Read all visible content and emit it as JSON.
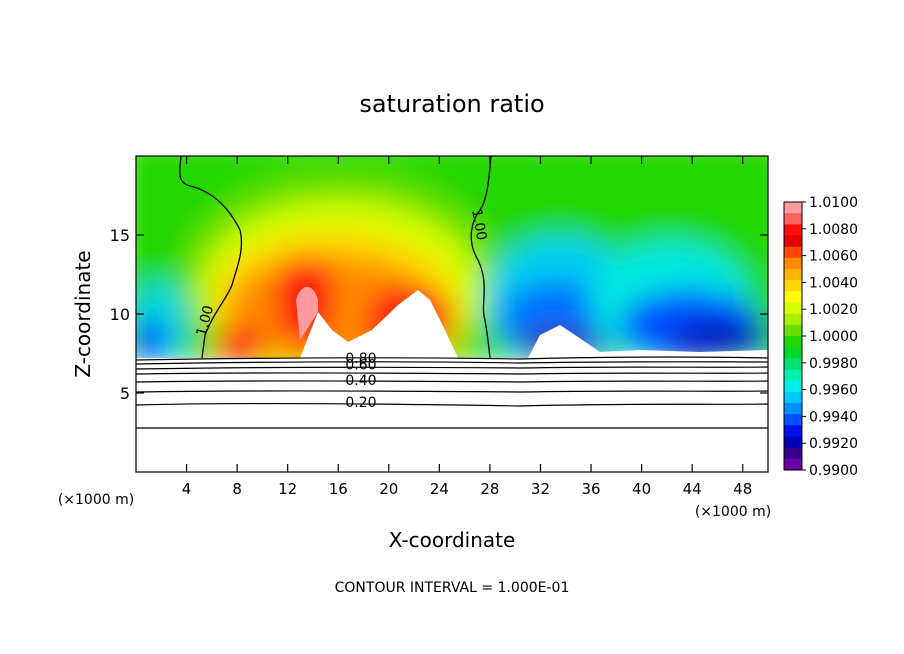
{
  "chart_data": {
    "type": "heatmap",
    "title": "saturation ratio",
    "xlabel": "X-coordinate",
    "ylabel": "Z-coordinate",
    "x_unit_left": "(×1000 m)",
    "x_unit_right": "(×1000 m)",
    "xlim": [
      0,
      50
    ],
    "ylim": [
      0,
      20
    ],
    "xticks": [
      4,
      8,
      12,
      16,
      20,
      24,
      28,
      32,
      36,
      40,
      44,
      48
    ],
    "yticks": [
      5,
      10,
      15
    ],
    "footer": "CONTOUR INTERVAL = 1.000E-01",
    "colorbar": {
      "labels": [
        "1.0100",
        "1.0080",
        "1.0060",
        "1.0040",
        "1.0020",
        "1.0000",
        "0.9980",
        "0.9960",
        "0.9940",
        "0.9920",
        "0.9900"
      ],
      "colors": [
        "#ff9aa0",
        "#ff6060",
        "#ff1010",
        "#e60000",
        "#ff4800",
        "#ff8c00",
        "#ffb400",
        "#ffd800",
        "#ffff00",
        "#d8ff00",
        "#a8f000",
        "#66e000",
        "#22d800",
        "#00d82a",
        "#00e070",
        "#00f0b0",
        "#00f0e8",
        "#00c8ff",
        "#0090ff",
        "#0050ff",
        "#0010f0",
        "#0000b8",
        "#3a008c",
        "#6a00a8"
      ]
    },
    "contour_labels": [
      {
        "text": "1.00",
        "x": 5.8,
        "z": 9.5
      },
      {
        "text": "1.00",
        "x": 26.8,
        "z": 15.6
      },
      {
        "text": "0.80",
        "x": 17.8,
        "z": 6.9
      },
      {
        "text": "0.60",
        "x": 17.8,
        "z": 6.5
      },
      {
        "text": "0.40",
        "x": 17.8,
        "z": 5.5
      },
      {
        "text": "0.20",
        "x": 17.8,
        "z": 4.1
      }
    ]
  }
}
